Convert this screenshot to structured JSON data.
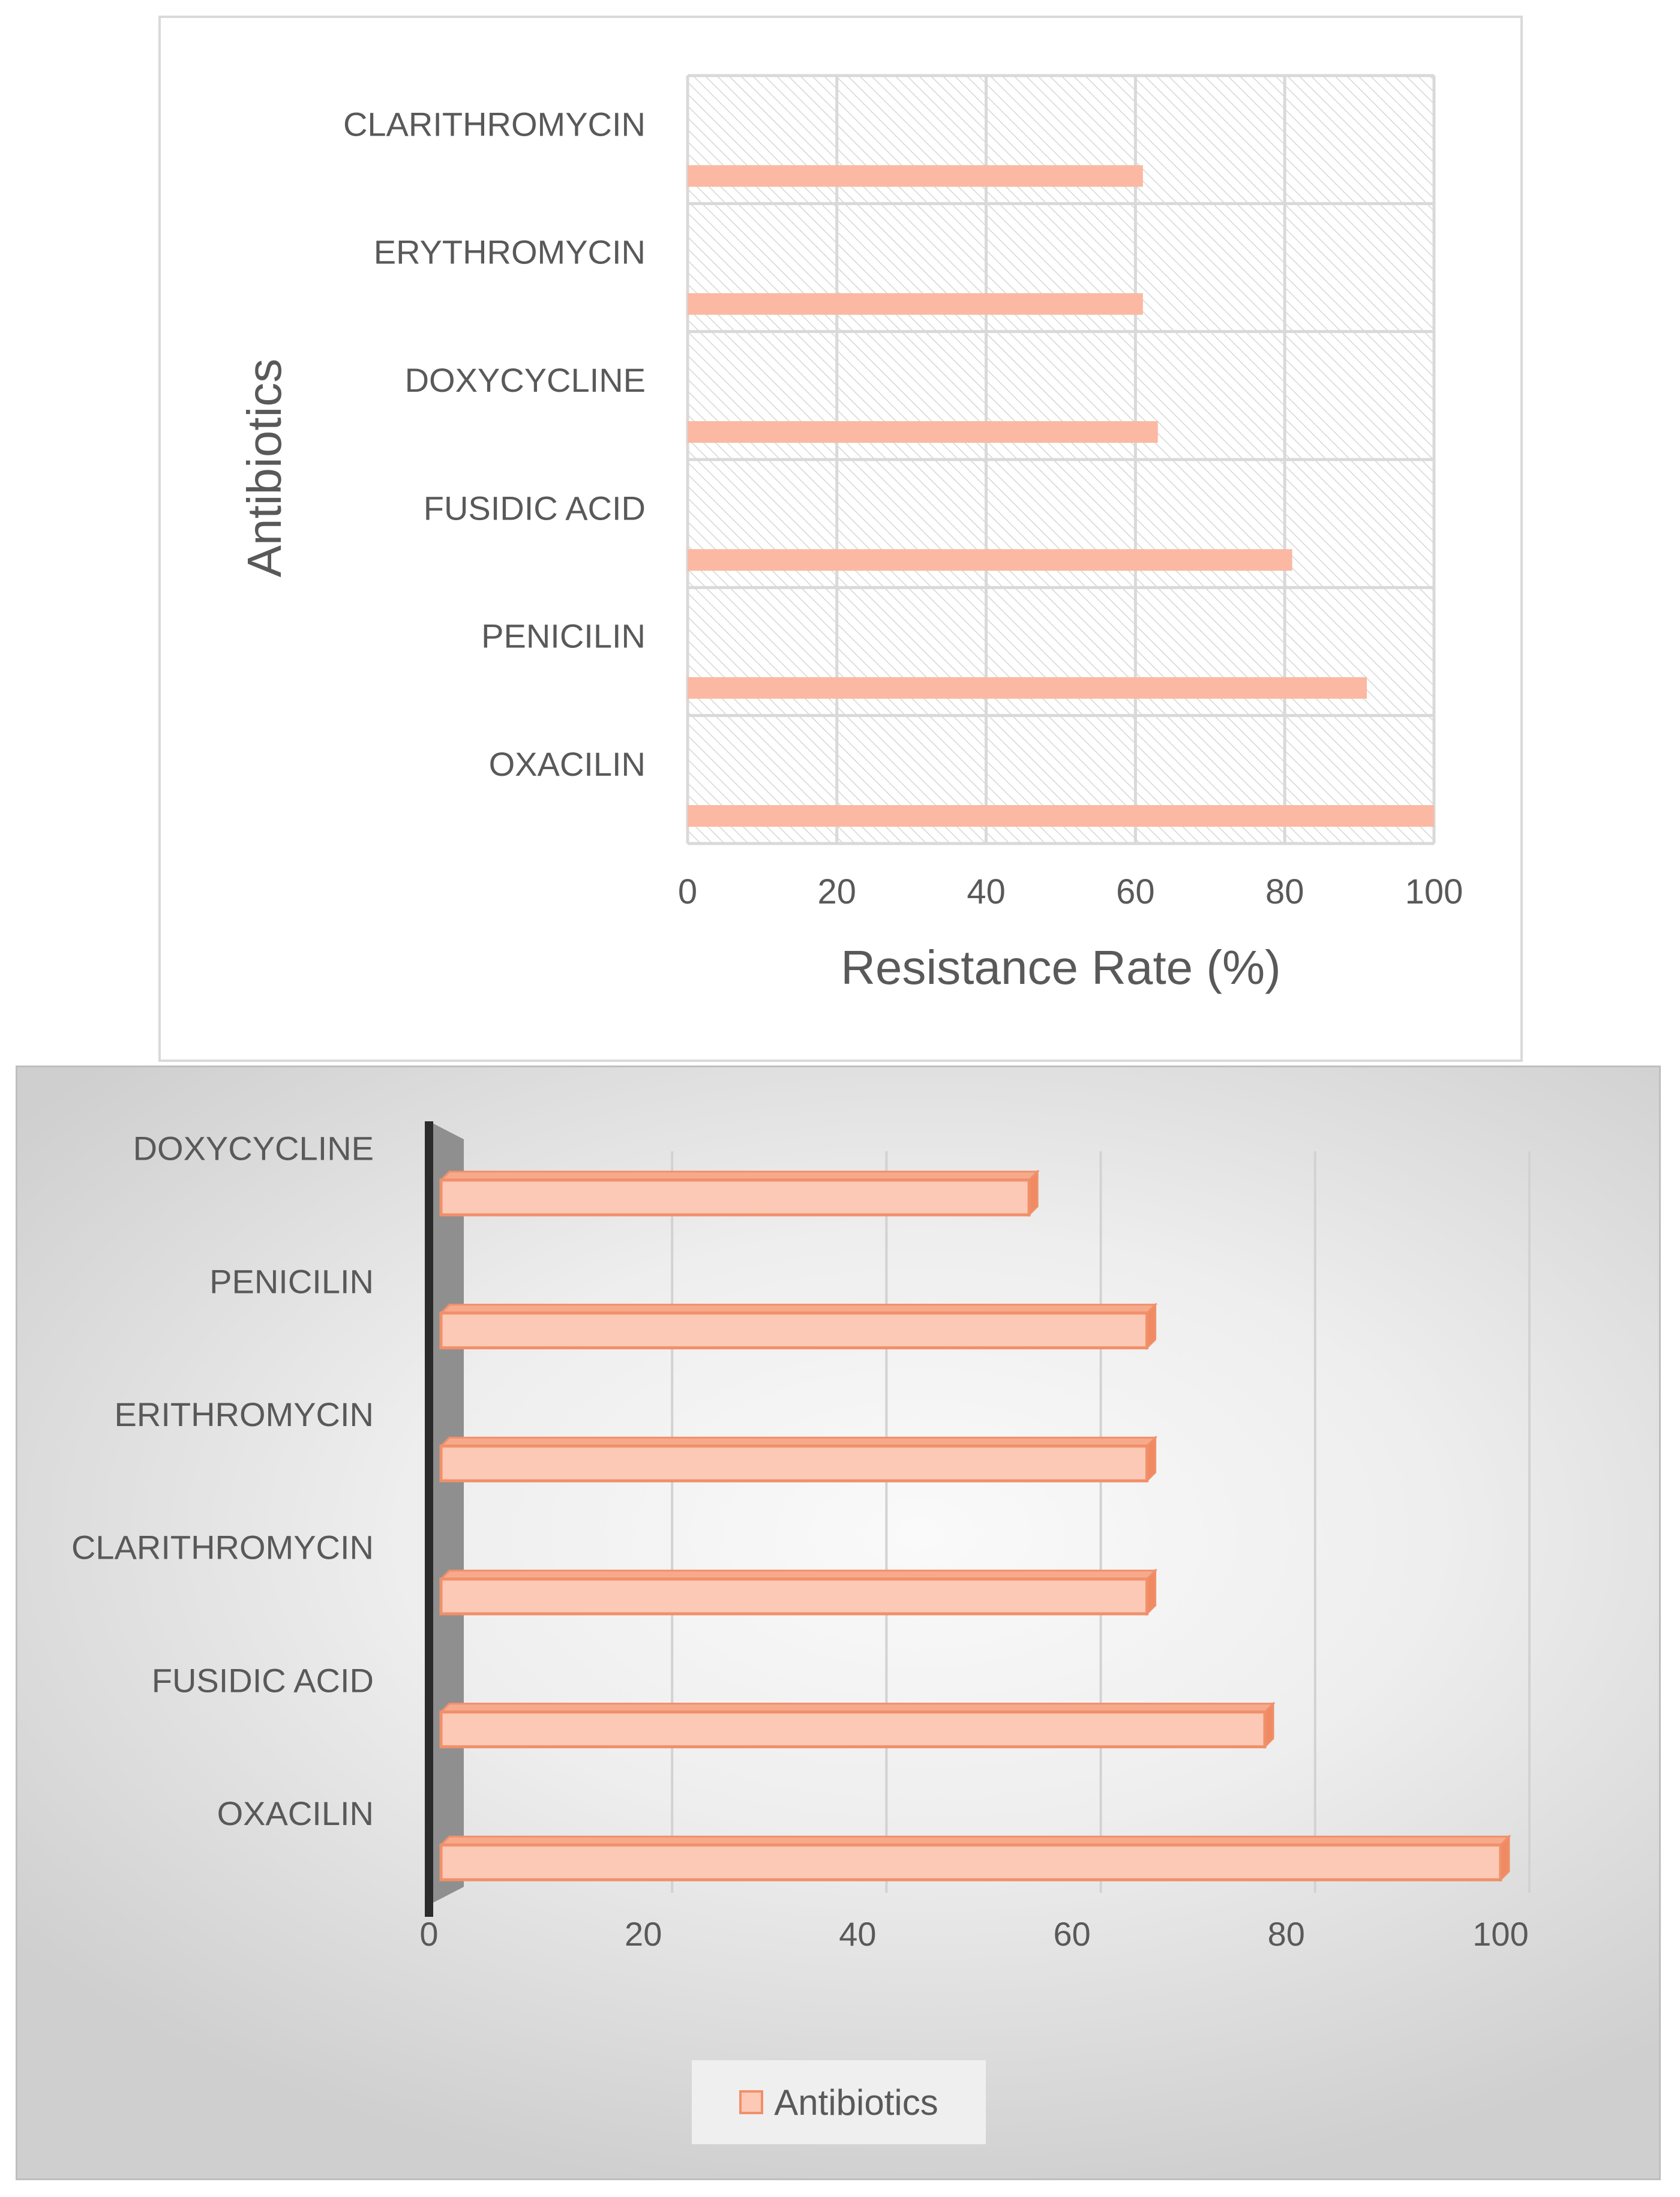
{
  "chart_data": [
    {
      "type": "bar",
      "orientation": "horizontal",
      "categories": [
        "OXACILIN",
        "PENICILIN",
        "FUSIDIC ACID",
        "DOXYCYCLINE",
        "ERYTHROMYCIN",
        "CLARITHROMYCIN"
      ],
      "values": [
        100,
        91,
        81,
        63,
        61,
        61
      ],
      "xlabel": "Resistance Rate (%)",
      "ylabel": "Antibiotics",
      "xlim": [
        0,
        100
      ],
      "xticks": [
        "0",
        "20",
        "40",
        "60",
        "80",
        "100"
      ],
      "grid": true,
      "colors": {
        "bar": "#fbb8a3",
        "grid": "#d9d9d9",
        "text": "#595959"
      }
    },
    {
      "type": "bar",
      "orientation": "horizontal",
      "style": "3d",
      "categories": [
        "OXACILIN",
        "FUSIDIC ACID",
        "CLARITHROMYCIN",
        "ERITHROMYCIN",
        "PENICILIN",
        "DOXYCYCLINE"
      ],
      "values": [
        100,
        78,
        67,
        67,
        67,
        56
      ],
      "xlim": [
        0,
        100
      ],
      "xticks": [
        "0",
        "20",
        "40",
        "60",
        "80",
        "100"
      ],
      "grid": true,
      "legend": {
        "position": "bottom",
        "entries": [
          "Antibiotics"
        ]
      },
      "colors": {
        "bar_fill": "#fbc9b5",
        "bar_edge": "#f0906a",
        "text": "#595959"
      }
    }
  ]
}
